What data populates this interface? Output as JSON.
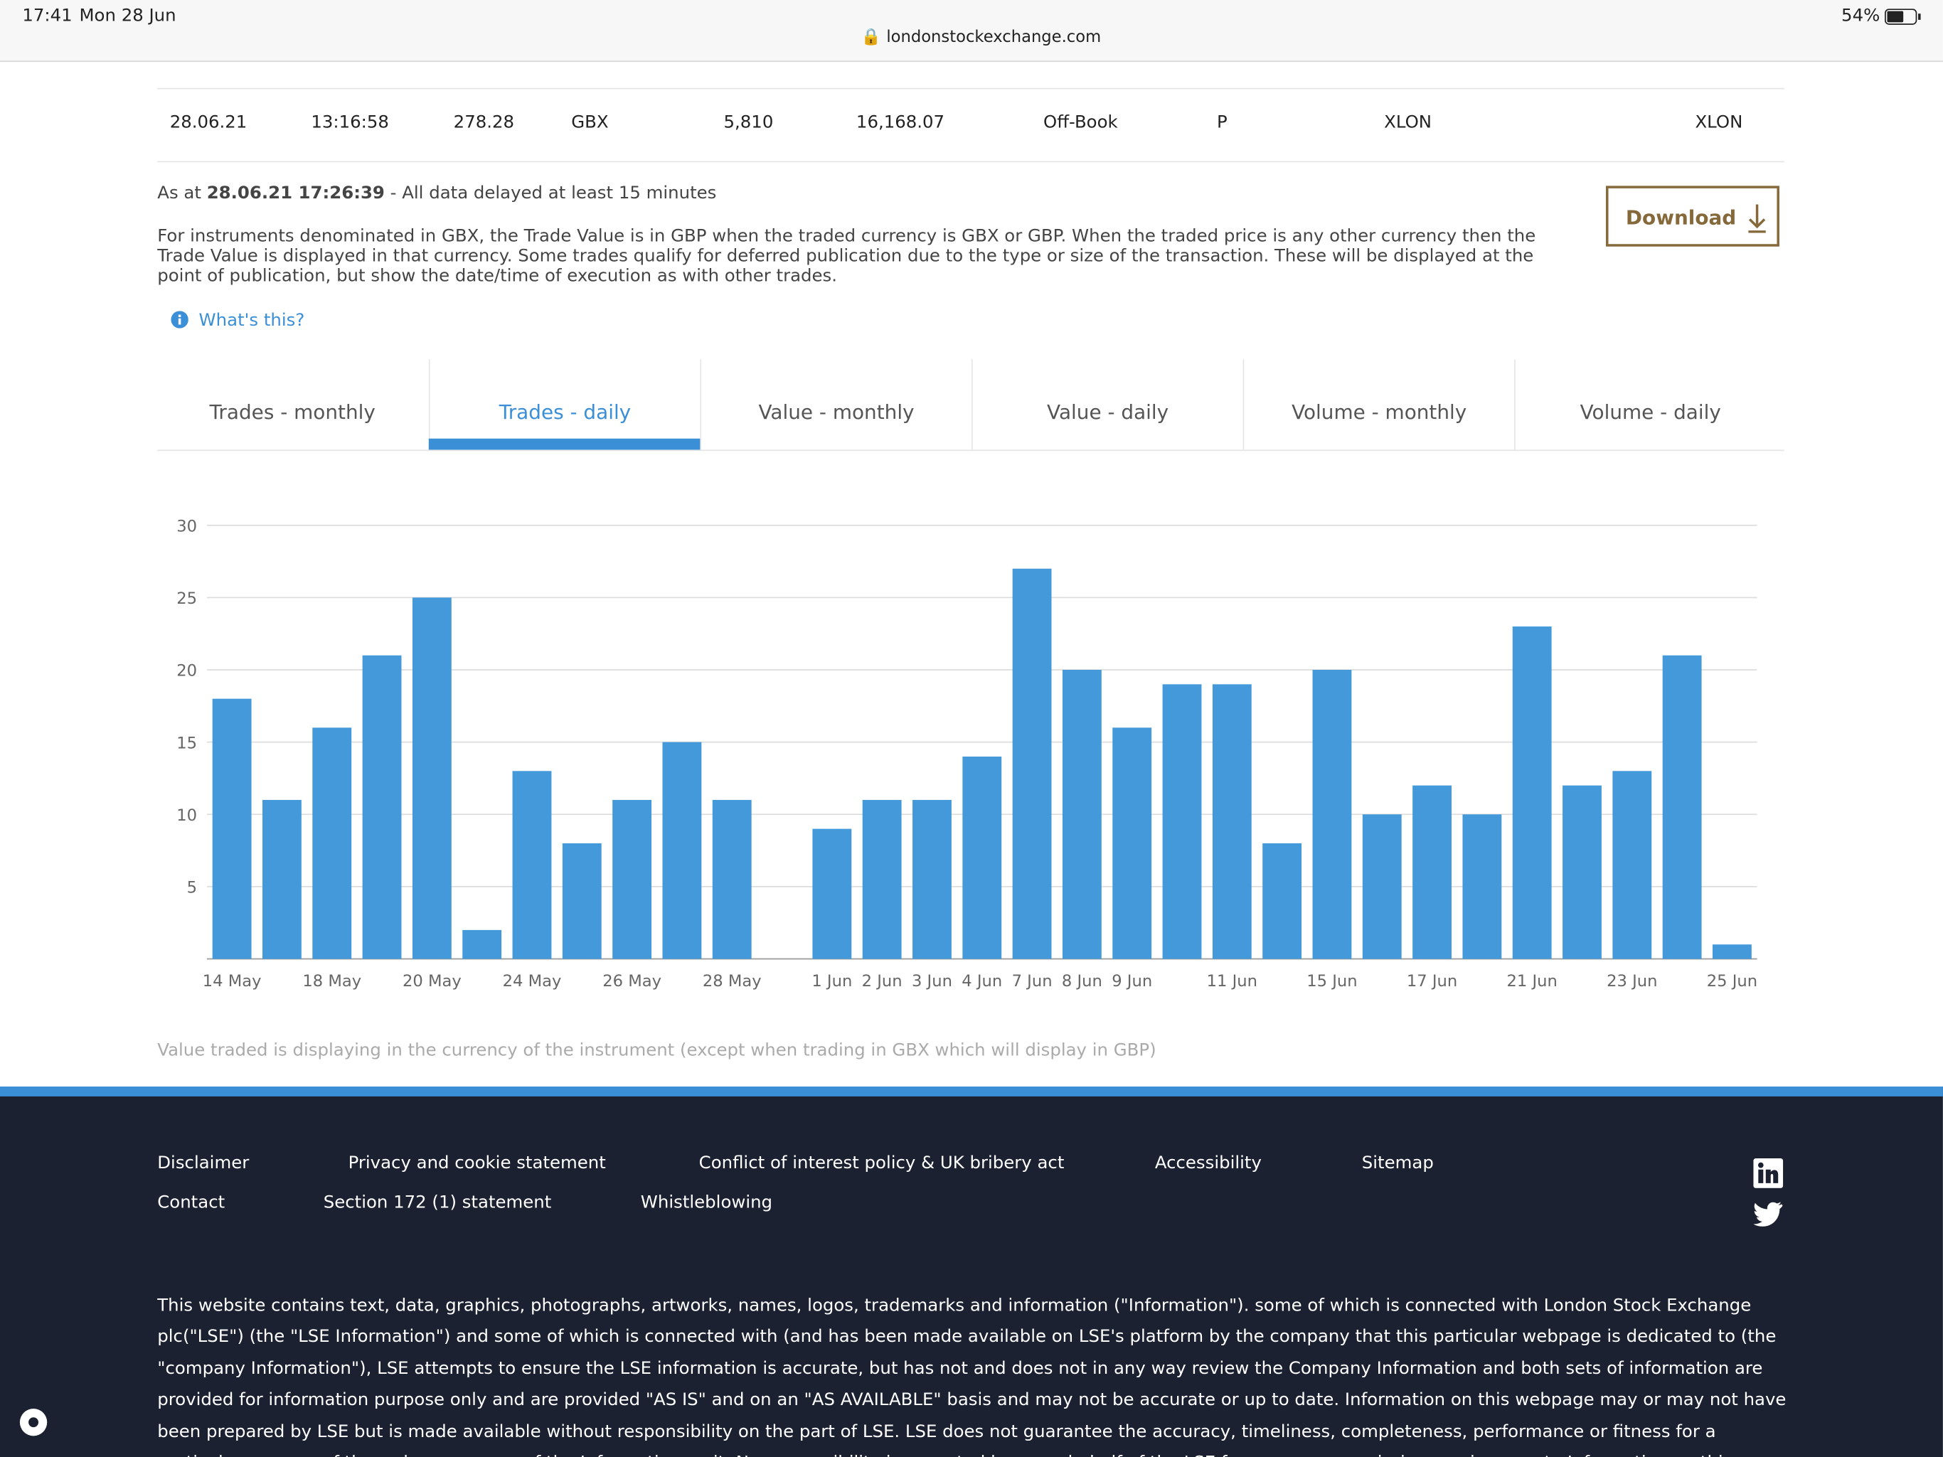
{
  "status_bar": {
    "time": "17:41",
    "date": "Mon 28 Jun",
    "url": "londonstockexchange.com",
    "battery": "54%"
  },
  "trade_row": [
    "28.06.21",
    "13:16:58",
    "278.28",
    "GBX",
    "5,810",
    "16,168.07",
    "Off-Book",
    "P",
    "XLON",
    "XLON"
  ],
  "as_at": {
    "prefix": "As at",
    "timestamp": "28.06.21 17:26:39",
    "suffix": "- All data delayed at least 15 minutes"
  },
  "note": "For instruments denominated in GBX, the Trade Value is in GBP when the traded currency is GBX or GBP. When the traded price is any other currency then the Trade Value is displayed in that currency. Some trades qualify for deferred publication due to the type or size of the transaction. These will be displayed at the point of publication, but show the date/time of execution as with other trades.",
  "download": "Download",
  "whats_this": "What's this?",
  "tabs": {
    "items": [
      "Trades - monthly",
      "Trades - daily",
      "Value - monthly",
      "Value - daily",
      "Volume - monthly",
      "Volume - daily"
    ],
    "active": 1
  },
  "chart_data": {
    "type": "bar",
    "color": "#4499db",
    "grid": true,
    "categories": [
      "14 May",
      null,
      "18 May",
      null,
      "20 May",
      null,
      "24 May",
      null,
      "26 May",
      null,
      "28 May",
      null,
      "1 Jun",
      "2 Jun",
      "3 Jun",
      "4 Jun",
      "7 Jun",
      "8 Jun",
      "9 Jun",
      null,
      "11 Jun",
      null,
      "15 Jun",
      null,
      "17 Jun",
      null,
      "21 Jun",
      null,
      "23 Jun",
      null,
      "25 Jun"
    ],
    "values": [
      18,
      11,
      16,
      21,
      25,
      2,
      13,
      8,
      11,
      15,
      11,
      null,
      9,
      11,
      11,
      14,
      27,
      20,
      16,
      19,
      19,
      8,
      20,
      10,
      12,
      10,
      23,
      12,
      13,
      21,
      1
    ],
    "ylim": [
      0,
      30
    ],
    "yticks": [
      5,
      10,
      15,
      20,
      25,
      30
    ]
  },
  "chart_note": "Value traded is displaying in the currency of the instrument (except when trading in GBX which will display in GBP)",
  "footer": {
    "links_row1": [
      "Disclaimer",
      "Privacy and cookie statement",
      "Conflict of interest policy & UK bribery act",
      "Accessibility",
      "Sitemap"
    ],
    "links_row2": [
      "Contact",
      "Section 172 (1) statement",
      "Whistleblowing"
    ],
    "disclaimer": "This website contains text, data, graphics, photographs, artworks, names, logos, trademarks and information (\"Information\"). some of which is connected with London Stock Exchange plc(\"LSE\") (the \"LSE Information\") and some of which is connected with (and has been made available on LSE's platform by the company that this particular webpage is dedicated to (the \"company Information\"), LSE attempts to ensure the LSE information is accurate, but has not and does not in any way review the Company Information and both sets of information are provided for information purpose only and are provided \"AS IS\" and on an \"AS AVAILABLE\" basis and may not be accurate or up to date. Information on this webpage may or may not have been prepared by LSE but is made available without responsibility on the part of LSE. LSE does not guarantee the accuracy, timeliness, completeness, performance or fitness for a particular purpose of the webpage or any of the Information on it. No responsibility is accepted by or on behalf of the LSE for any errors, omissions, or inaccurate Information on this webpage."
  }
}
